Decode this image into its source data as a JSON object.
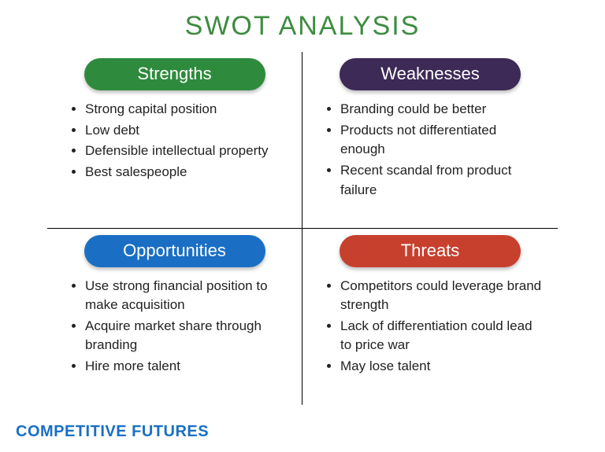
{
  "type": "infographic",
  "title": "SWOT ANALYSIS",
  "title_color": "#3d8c40",
  "title_fontsize": 34,
  "background_color": "#ffffff",
  "divider_color": "#000000",
  "bullet_fontsize": 17,
  "bullet_color": "#222222",
  "quadrants": {
    "strengths": {
      "label": "Strengths",
      "pill_color": "#2e8b3d",
      "items": [
        "Strong capital position",
        "Low debt",
        "Defensible intellectual property",
        "Best salespeople"
      ]
    },
    "weaknesses": {
      "label": "Weaknesses",
      "pill_color": "#3d2a57",
      "items": [
        "Branding could be better",
        "Products not differentiated enough",
        "Recent scandal from product failure"
      ]
    },
    "opportunities": {
      "label": "Opportunities",
      "pill_color": "#1a6fc4",
      "items": [
        "Use strong financial position to make acquisition",
        "Acquire market share through branding",
        "Hire more talent"
      ]
    },
    "threats": {
      "label": "Threats",
      "pill_color": "#c7402e",
      "items": [
        "Competitors could leverage brand strength",
        "Lack of differentiation could lead to price war",
        "May lose talent"
      ]
    }
  },
  "footer": {
    "text": "COMPETITIVE FUTURES",
    "color": "#1a6fc4",
    "fontsize": 20
  }
}
